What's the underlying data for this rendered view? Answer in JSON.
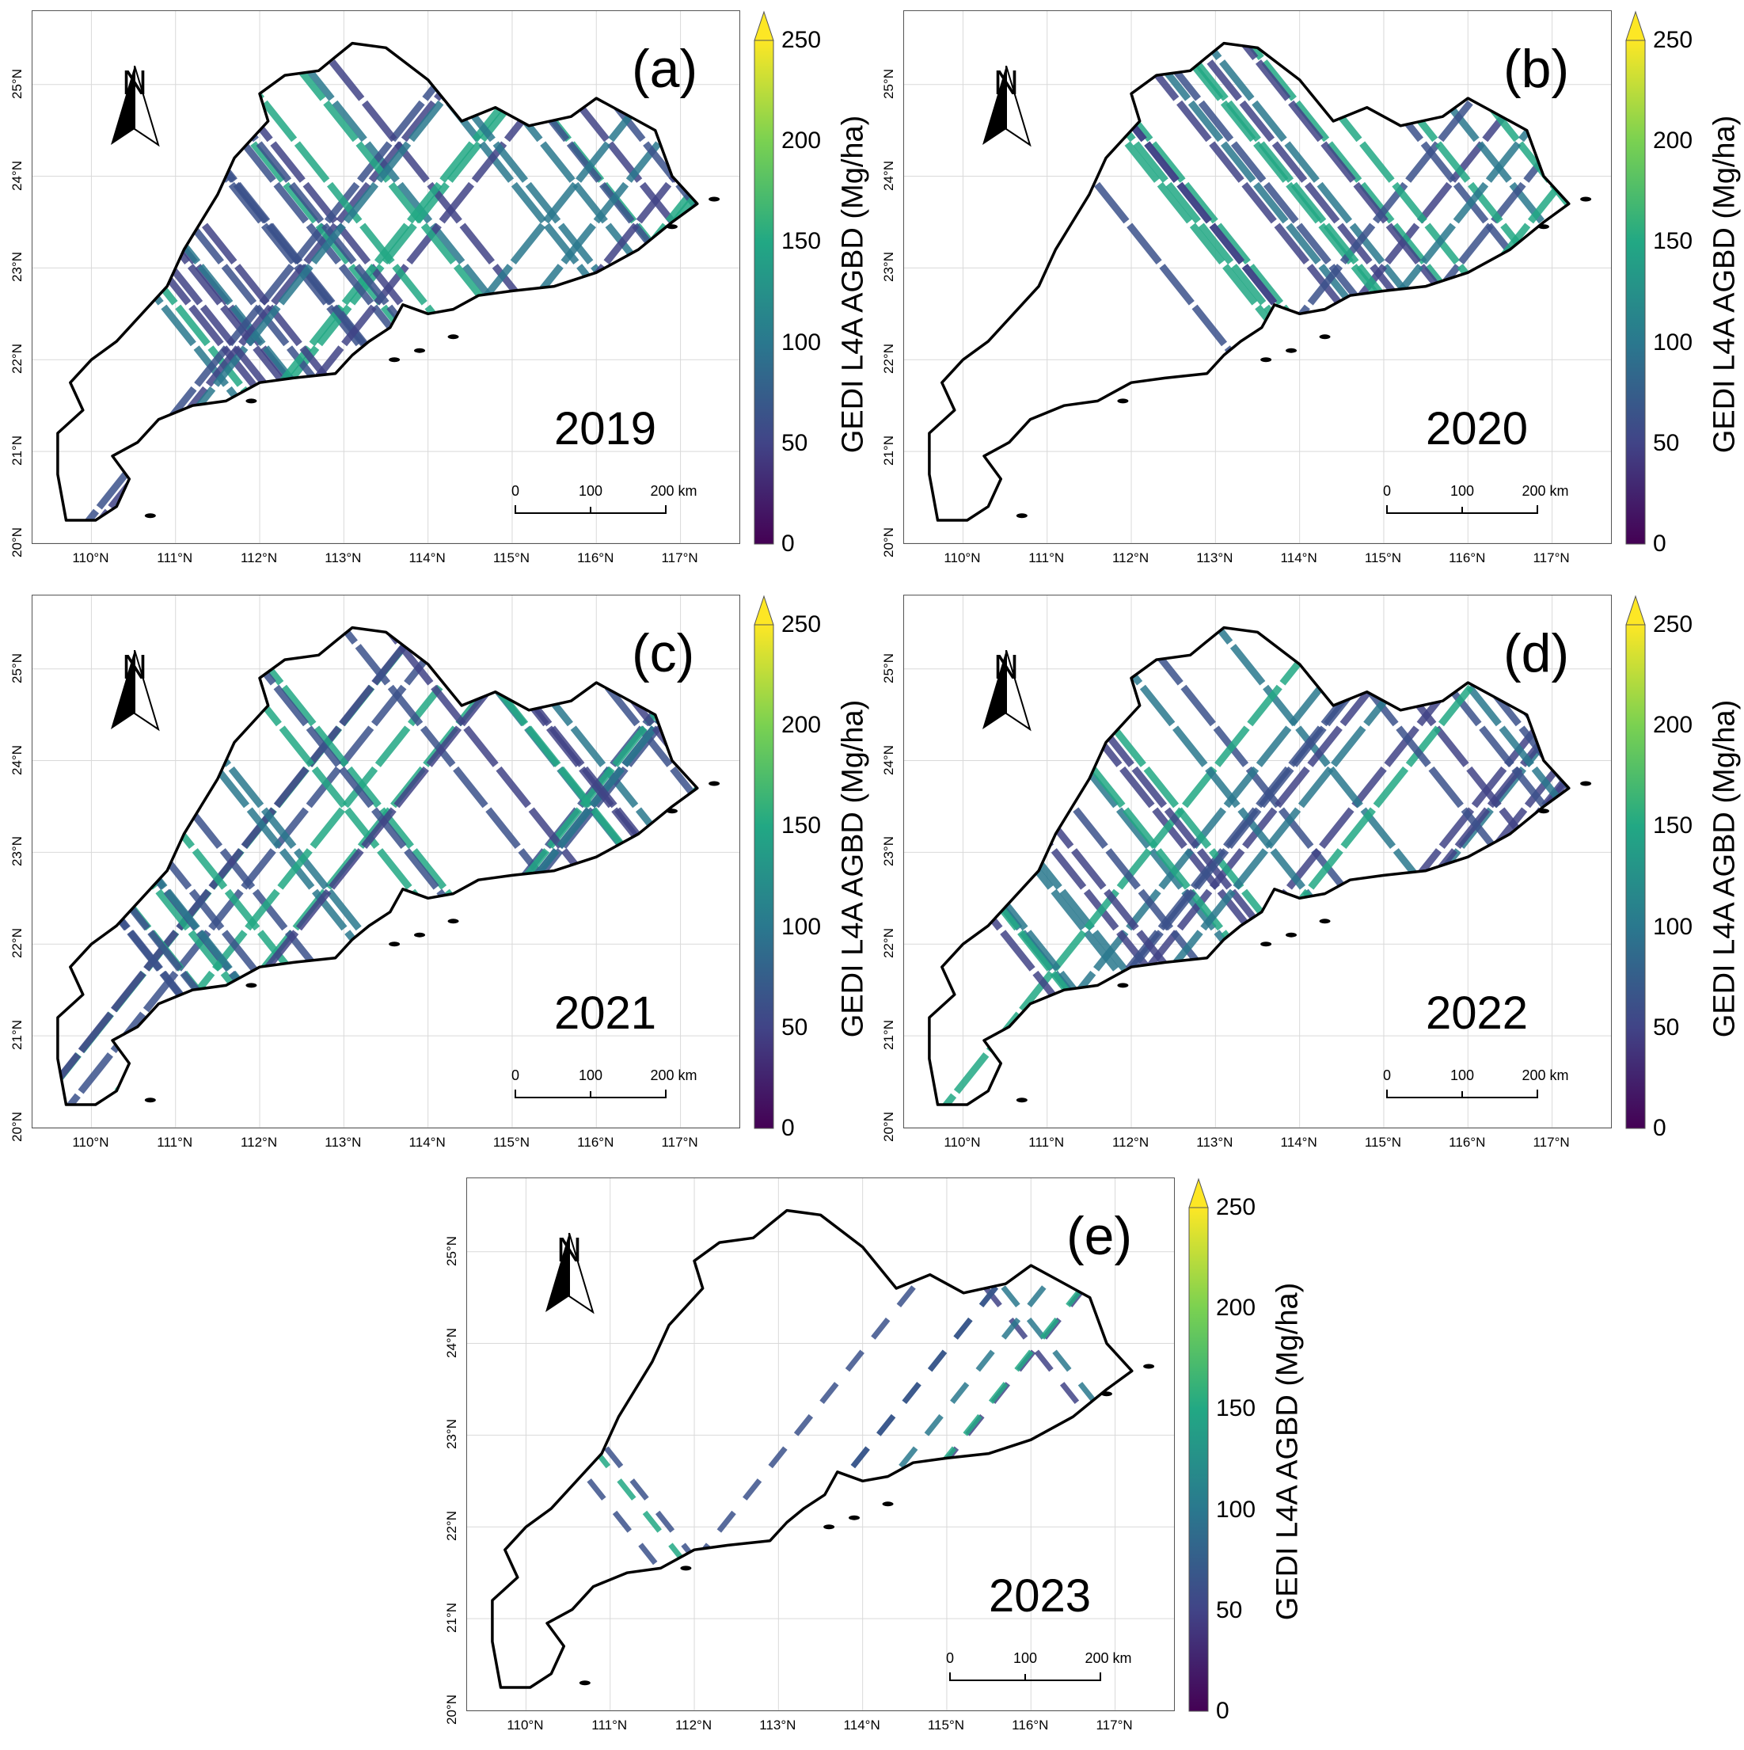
{
  "colorbar": {
    "title": "GEDI  L4A  AGBD (Mg/ha)",
    "ticks": [
      "0",
      "50",
      "100",
      "150",
      "200",
      "250"
    ],
    "range": [
      0,
      250
    ],
    "extend": "max",
    "colormap": [
      "#440154",
      "#414487",
      "#2a788e",
      "#22a884",
      "#7ad151",
      "#fde725"
    ]
  },
  "axes": {
    "x_ticks": [
      "110°N",
      "111°N",
      "112°N",
      "113°N",
      "114°N",
      "115°N",
      "116°N",
      "117°N"
    ],
    "y_ticks": [
      "20°N",
      "21°N",
      "22°N",
      "23°N",
      "24°N",
      "25°N"
    ],
    "x_range": [
      109.3,
      117.7
    ],
    "y_range": [
      20.0,
      25.8
    ],
    "grid": true
  },
  "scalebar": {
    "labels": [
      "0",
      "100",
      "200 km"
    ]
  },
  "north_arrow": {
    "letter": "N"
  },
  "colors": {
    "boundary": "#000000",
    "grid": "#d9d9d9"
  },
  "panels": [
    {
      "label": "(a)",
      "year": "2019",
      "track_density": "dense"
    },
    {
      "label": "(b)",
      "year": "2020",
      "track_density": "moderate, concentrated east"
    },
    {
      "label": "(c)",
      "year": "2021",
      "track_density": "dense"
    },
    {
      "label": "(d)",
      "year": "2022",
      "track_density": "dense"
    },
    {
      "label": "(e)",
      "year": "2023",
      "track_density": "sparse"
    }
  ]
}
